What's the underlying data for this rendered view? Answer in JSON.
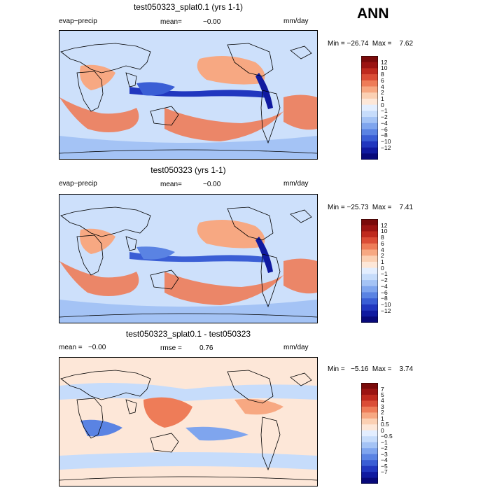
{
  "season": "ANN",
  "colors": {
    "pos": [
      "#fde7d8",
      "#fbd0b3",
      "#f7a882",
      "#ee7c58",
      "#db4d36",
      "#bf2a1e",
      "#9b1412",
      "#7a0a0a"
    ],
    "neg": [
      "#e3eeff",
      "#c6dcfb",
      "#a4c3f5",
      "#7fa5ee",
      "#5a83e3",
      "#3a5ed5",
      "#2137bf",
      "#101aa0",
      "#08097a"
    ],
    "land": "#cde0fb",
    "coast": "#000000"
  },
  "panels": [
    {
      "title": "test050323_splat0.1 (yrs 1-1)",
      "left_label": "evap−precip",
      "mean_label": "mean=",
      "mean_value": "−0.00",
      "units": "mm/day",
      "min_max": "Min = −26.74  Max =    7.62",
      "colorbar_labels": [
        "12",
        "10",
        "8",
        "6",
        "4",
        "2",
        "1",
        "0",
        "−1",
        "−2",
        "−4",
        "−6",
        "−8",
        "−10",
        "−12"
      ]
    },
    {
      "title": "test050323 (yrs 1-1)",
      "left_label": "evap−precip",
      "mean_label": "mean=",
      "mean_value": "−0.00",
      "units": "mm/day",
      "min_max": "Min = −25.73  Max =    7.41",
      "colorbar_labels": [
        "12",
        "10",
        "8",
        "6",
        "4",
        "2",
        "1",
        "0",
        "−1",
        "−2",
        "−4",
        "−6",
        "−8",
        "−10",
        "−12"
      ]
    },
    {
      "title": "test050323_splat0.1 - test050323",
      "left_label": "mean =   −0.00",
      "mean_label": "rmse =",
      "mean_value": "0.76",
      "units": "mm/day",
      "min_max": "Min =   −5.16  Max =    3.74",
      "colorbar_labels": [
        "7",
        "5",
        "4",
        "3",
        "2",
        "1",
        "0.5",
        "0",
        "−0.5",
        "−1",
        "−2",
        "−3",
        "−4",
        "−5",
        "−7"
      ]
    }
  ]
}
